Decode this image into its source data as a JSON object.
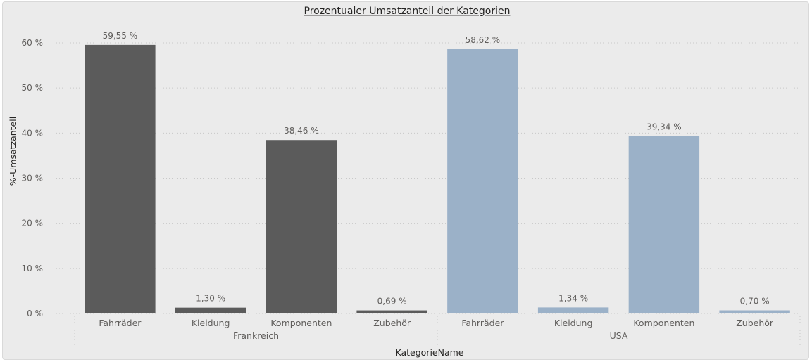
{
  "chart_data": {
    "type": "bar",
    "title": "Prozentualer Umsatzanteil der Kategorien",
    "xlabel": "KategorieName",
    "ylabel": "%-Umsatzanteil",
    "ylim": [
      0,
      60
    ],
    "yticks": [
      "0 %",
      "10 %",
      "20 %",
      "30 %",
      "40 %",
      "50 %",
      "60 %"
    ],
    "ytick_values": [
      0,
      10,
      20,
      30,
      40,
      50,
      60
    ],
    "grid": true,
    "groups": [
      {
        "name": "Frankreich",
        "color": "#5b5b5b",
        "categories": [
          "Fahrräder",
          "Kleidung",
          "Komponenten",
          "Zubehör"
        ],
        "values": [
          59.55,
          1.3,
          38.46,
          0.69
        ],
        "labels": [
          "59,55 %",
          "1,30 %",
          "38,46 %",
          "0,69 %"
        ]
      },
      {
        "name": "USA",
        "color": "#9bb1c8",
        "categories": [
          "Fahrräder",
          "Kleidung",
          "Komponenten",
          "Zubehör"
        ],
        "values": [
          58.62,
          1.34,
          39.34,
          0.7
        ],
        "labels": [
          "58,62 %",
          "1,34 %",
          "39,34 %",
          "0,70 %"
        ]
      }
    ]
  }
}
